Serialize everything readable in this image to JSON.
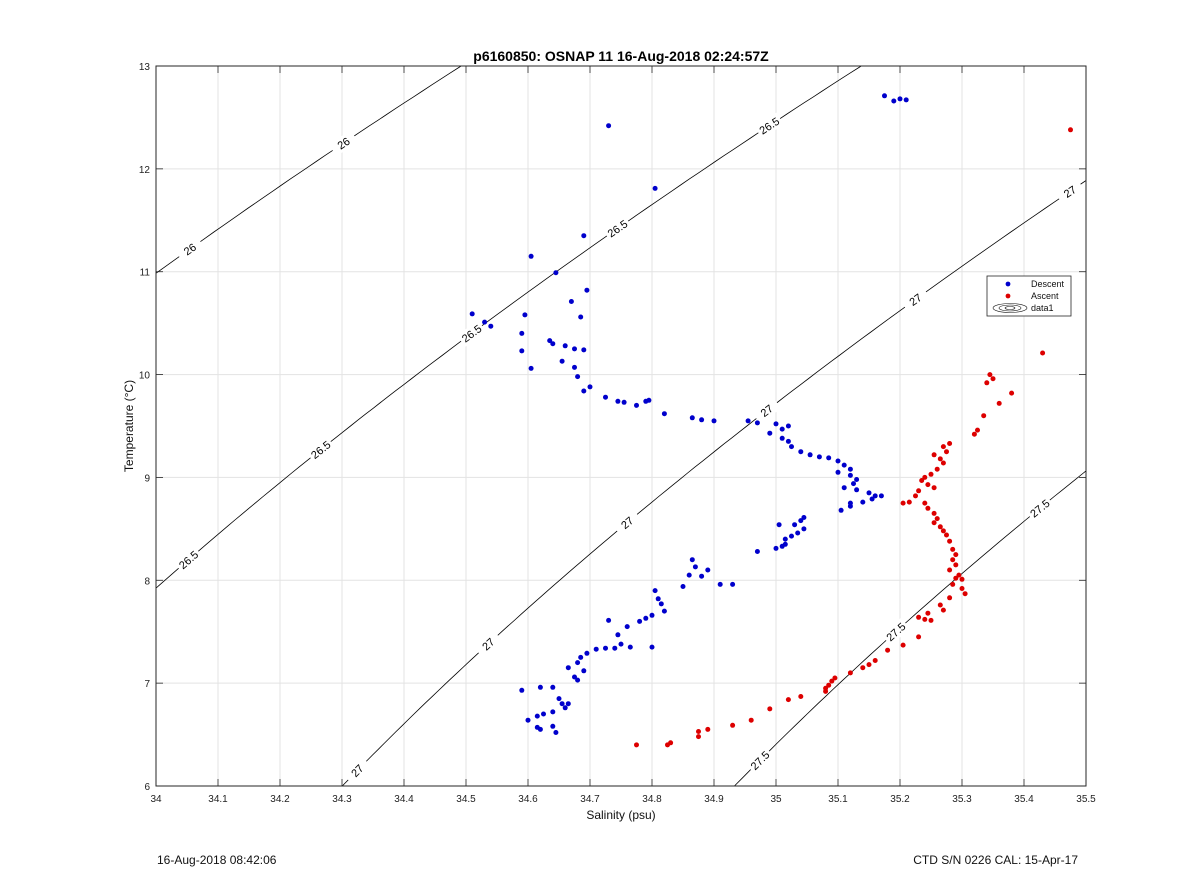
{
  "chart_data": {
    "type": "scatter",
    "title": "p6160850: OSNAP 11 16-Aug-2018 02:24:57Z",
    "xlabel": "Salinity (psu)",
    "ylabel": "Temperature (°C)",
    "xlim": [
      34,
      35.5
    ],
    "ylim": [
      6,
      13
    ],
    "xticks": [
      "34",
      "34.1",
      "34.2",
      "34.3",
      "34.4",
      "34.5",
      "34.6",
      "34.7",
      "34.8",
      "34.9",
      "35",
      "35.1",
      "35.2",
      "35.3",
      "35.4",
      "35.5"
    ],
    "yticks": [
      "6",
      "7",
      "8",
      "9",
      "10",
      "11",
      "12",
      "13"
    ],
    "grid": true,
    "legend_position": "right",
    "legend": [
      "Descent",
      "Ascent",
      "data1"
    ],
    "colors": {
      "descent": "#0000cc",
      "ascent": "#dd0000",
      "contour": "#000000",
      "grid": "#e3e3e3",
      "axis": "#262626"
    },
    "contours": [
      {
        "level": 26,
        "label": "26",
        "label_positions": [
          [
            34.07,
            11.22
          ],
          [
            34.3,
            12.25
          ]
        ]
      },
      {
        "level": 26.5,
        "label": "26.5",
        "label_positions": [
          [
            34.06,
            8.2
          ],
          [
            34.28,
            9.27
          ],
          [
            34.52,
            10.4
          ],
          [
            34.75,
            11.42
          ],
          [
            35.0,
            12.42
          ]
        ]
      },
      {
        "level": 27,
        "label": "27",
        "label_positions": [
          [
            34.33,
            6.15
          ],
          [
            34.55,
            7.38
          ],
          [
            34.78,
            8.56
          ],
          [
            35.01,
            9.65
          ],
          [
            35.25,
            10.73
          ],
          [
            35.48,
            11.78
          ]
        ]
      },
      {
        "level": 27.5,
        "label": "27.5",
        "label_positions": [
          [
            35.05,
            6.25
          ],
          [
            35.28,
            7.5
          ],
          [
            35.5,
            8.7
          ]
        ]
      }
    ],
    "series": [
      {
        "name": "Descent",
        "points": [
          [
            35.175,
            12.71
          ],
          [
            35.19,
            12.66
          ],
          [
            35.2,
            12.68
          ],
          [
            35.21,
            12.67
          ],
          [
            34.73,
            12.42
          ],
          [
            34.805,
            11.81
          ],
          [
            34.69,
            11.35
          ],
          [
            34.605,
            11.15
          ],
          [
            34.645,
            10.99
          ],
          [
            34.695,
            10.82
          ],
          [
            34.67,
            10.71
          ],
          [
            34.685,
            10.56
          ],
          [
            34.51,
            10.59
          ],
          [
            34.53,
            10.51
          ],
          [
            34.54,
            10.47
          ],
          [
            34.595,
            10.58
          ],
          [
            34.59,
            10.4
          ],
          [
            34.635,
            10.33
          ],
          [
            34.64,
            10.3
          ],
          [
            34.66,
            10.28
          ],
          [
            34.675,
            10.25
          ],
          [
            34.69,
            10.24
          ],
          [
            34.59,
            10.23
          ],
          [
            34.655,
            10.13
          ],
          [
            34.605,
            10.06
          ],
          [
            34.675,
            10.07
          ],
          [
            34.68,
            9.98
          ],
          [
            34.7,
            9.88
          ],
          [
            34.69,
            9.84
          ],
          [
            34.725,
            9.78
          ],
          [
            34.745,
            9.74
          ],
          [
            34.755,
            9.73
          ],
          [
            34.775,
            9.7
          ],
          [
            34.795,
            9.75
          ],
          [
            34.79,
            9.74
          ],
          [
            34.82,
            9.62
          ],
          [
            34.865,
            9.58
          ],
          [
            34.88,
            9.56
          ],
          [
            34.9,
            9.55
          ],
          [
            34.955,
            9.55
          ],
          [
            34.97,
            9.53
          ],
          [
            35.0,
            9.52
          ],
          [
            35.02,
            9.5
          ],
          [
            35.01,
            9.47
          ],
          [
            34.99,
            9.43
          ],
          [
            35.01,
            9.38
          ],
          [
            35.02,
            9.35
          ],
          [
            35.025,
            9.3
          ],
          [
            35.04,
            9.25
          ],
          [
            35.055,
            9.22
          ],
          [
            35.07,
            9.2
          ],
          [
            35.085,
            9.19
          ],
          [
            35.1,
            9.16
          ],
          [
            35.11,
            9.12
          ],
          [
            35.12,
            9.08
          ],
          [
            35.1,
            9.05
          ],
          [
            35.12,
            9.02
          ],
          [
            35.13,
            8.98
          ],
          [
            35.125,
            8.94
          ],
          [
            35.11,
            8.9
          ],
          [
            35.13,
            8.88
          ],
          [
            35.15,
            8.85
          ],
          [
            35.16,
            8.82
          ],
          [
            35.17,
            8.82
          ],
          [
            35.155,
            8.79
          ],
          [
            35.14,
            8.76
          ],
          [
            35.12,
            8.72
          ],
          [
            35.105,
            8.68
          ],
          [
            35.12,
            8.75
          ],
          [
            35.045,
            8.61
          ],
          [
            35.04,
            8.58
          ],
          [
            35.03,
            8.54
          ],
          [
            35.045,
            8.5
          ],
          [
            35.035,
            8.46
          ],
          [
            35.025,
            8.43
          ],
          [
            35.015,
            8.4
          ],
          [
            35.01,
            8.33
          ],
          [
            35.0,
            8.31
          ],
          [
            35.015,
            8.35
          ],
          [
            35.005,
            8.54
          ],
          [
            34.97,
            8.28
          ],
          [
            34.865,
            8.2
          ],
          [
            34.87,
            8.13
          ],
          [
            34.86,
            8.05
          ],
          [
            34.88,
            8.04
          ],
          [
            34.89,
            8.1
          ],
          [
            34.91,
            7.96
          ],
          [
            34.93,
            7.96
          ],
          [
            34.85,
            7.94
          ],
          [
            34.805,
            7.9
          ],
          [
            34.81,
            7.82
          ],
          [
            34.815,
            7.77
          ],
          [
            34.82,
            7.7
          ],
          [
            34.8,
            7.66
          ],
          [
            34.79,
            7.63
          ],
          [
            34.78,
            7.6
          ],
          [
            34.73,
            7.61
          ],
          [
            34.76,
            7.55
          ],
          [
            34.745,
            7.47
          ],
          [
            34.75,
            7.38
          ],
          [
            34.765,
            7.35
          ],
          [
            34.74,
            7.34
          ],
          [
            34.725,
            7.34
          ],
          [
            34.71,
            7.33
          ],
          [
            34.695,
            7.29
          ],
          [
            34.685,
            7.25
          ],
          [
            34.68,
            7.2
          ],
          [
            34.665,
            7.15
          ],
          [
            34.69,
            7.12
          ],
          [
            34.675,
            7.06
          ],
          [
            34.68,
            7.03
          ],
          [
            34.665,
            6.8
          ],
          [
            34.66,
            6.76
          ],
          [
            34.64,
            6.72
          ],
          [
            34.625,
            6.7
          ],
          [
            34.615,
            6.68
          ],
          [
            34.6,
            6.64
          ],
          [
            34.59,
            6.93
          ],
          [
            34.62,
            6.96
          ],
          [
            34.64,
            6.96
          ],
          [
            34.615,
            6.57
          ],
          [
            34.62,
            6.55
          ],
          [
            34.645,
            6.52
          ],
          [
            34.64,
            6.58
          ],
          [
            34.65,
            6.85
          ],
          [
            34.655,
            6.8
          ],
          [
            34.8,
            7.35
          ]
        ]
      },
      {
        "name": "Ascent",
        "points": [
          [
            35.475,
            12.38
          ],
          [
            35.43,
            10.21
          ],
          [
            35.345,
            10.0
          ],
          [
            35.35,
            9.96
          ],
          [
            35.34,
            9.92
          ],
          [
            35.38,
            9.82
          ],
          [
            35.36,
            9.72
          ],
          [
            35.335,
            9.6
          ],
          [
            35.325,
            9.46
          ],
          [
            35.32,
            9.42
          ],
          [
            35.28,
            9.33
          ],
          [
            35.27,
            9.3
          ],
          [
            35.275,
            9.25
          ],
          [
            35.255,
            9.22
          ],
          [
            35.265,
            9.18
          ],
          [
            35.27,
            9.14
          ],
          [
            35.26,
            9.08
          ],
          [
            35.25,
            9.03
          ],
          [
            35.24,
            9.0
          ],
          [
            35.235,
            8.97
          ],
          [
            35.245,
            8.93
          ],
          [
            35.255,
            8.9
          ],
          [
            35.23,
            8.87
          ],
          [
            35.225,
            8.82
          ],
          [
            35.215,
            8.76
          ],
          [
            35.205,
            8.75
          ],
          [
            35.24,
            8.75
          ],
          [
            35.245,
            8.7
          ],
          [
            35.255,
            8.65
          ],
          [
            35.26,
            8.6
          ],
          [
            35.255,
            8.56
          ],
          [
            35.265,
            8.52
          ],
          [
            35.27,
            8.48
          ],
          [
            35.275,
            8.44
          ],
          [
            35.28,
            8.38
          ],
          [
            35.285,
            8.3
          ],
          [
            35.29,
            8.25
          ],
          [
            35.285,
            8.2
          ],
          [
            35.29,
            8.15
          ],
          [
            35.28,
            8.1
          ],
          [
            35.295,
            8.05
          ],
          [
            35.3,
            8.01
          ],
          [
            35.29,
            8.02
          ],
          [
            35.285,
            7.96
          ],
          [
            35.3,
            7.92
          ],
          [
            35.305,
            7.87
          ],
          [
            35.28,
            7.83
          ],
          [
            35.265,
            7.76
          ],
          [
            35.27,
            7.71
          ],
          [
            35.245,
            7.68
          ],
          [
            35.23,
            7.64
          ],
          [
            35.24,
            7.62
          ],
          [
            35.25,
            7.61
          ],
          [
            35.23,
            7.45
          ],
          [
            35.205,
            7.37
          ],
          [
            35.18,
            7.32
          ],
          [
            35.16,
            7.22
          ],
          [
            35.15,
            7.18
          ],
          [
            35.14,
            7.15
          ],
          [
            35.12,
            7.1
          ],
          [
            35.095,
            7.05
          ],
          [
            35.09,
            7.02
          ],
          [
            35.085,
            6.98
          ],
          [
            35.08,
            6.95
          ],
          [
            35.08,
            6.92
          ],
          [
            35.04,
            6.87
          ],
          [
            35.02,
            6.84
          ],
          [
            34.99,
            6.75
          ],
          [
            34.96,
            6.64
          ],
          [
            34.93,
            6.59
          ],
          [
            34.89,
            6.55
          ],
          [
            34.875,
            6.53
          ],
          [
            34.875,
            6.48
          ],
          [
            34.83,
            6.42
          ],
          [
            34.825,
            6.4
          ],
          [
            34.775,
            6.4
          ]
        ]
      }
    ]
  },
  "footer": {
    "left": "16-Aug-2018 08:42:06",
    "right": "CTD S/N 0226  CAL: 15-Apr-17"
  }
}
